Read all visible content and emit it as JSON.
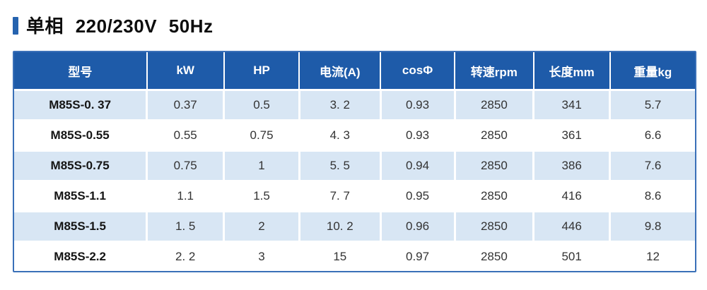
{
  "title": {
    "text": "单相 220/230V 50Hz"
  },
  "colors": {
    "accent": "#2563af",
    "header_bg": "#1e5ba9",
    "header_text": "#ffffff",
    "row_stripe": "#d8e6f4",
    "table_border": "#3a70b8"
  },
  "table": {
    "columns": [
      "型号",
      "kW",
      "HP",
      "电流(A)",
      "cosΦ",
      "转速rpm",
      "长度mm",
      "重量kg"
    ],
    "column_widths_pct": [
      19.5,
      11.3,
      11.1,
      11.9,
      10.9,
      11.6,
      11.2,
      12.5
    ],
    "rows": [
      [
        "M85S-0. 37",
        "0.37",
        "0.5",
        "3. 2",
        "0.93",
        "2850",
        "341",
        "5.7"
      ],
      [
        "M85S-0.55",
        "0.55",
        "0.75",
        "4. 3",
        "0.93",
        "2850",
        "361",
        "6.6"
      ],
      [
        "M85S-0.75",
        "0.75",
        "1",
        "5. 5",
        "0.94",
        "2850",
        "386",
        "7.6"
      ],
      [
        "M85S-1.1",
        "1.1",
        "1.5",
        "7. 7",
        "0.95",
        "2850",
        "416",
        "8.6"
      ],
      [
        "M85S-1.5",
        "1. 5",
        "2",
        "10. 2",
        "0.96",
        "2850",
        "446",
        "9.8"
      ],
      [
        "M85S-2.2",
        "2. 2",
        "3",
        "15",
        "0.97",
        "2850",
        "501",
        "12"
      ]
    ]
  }
}
